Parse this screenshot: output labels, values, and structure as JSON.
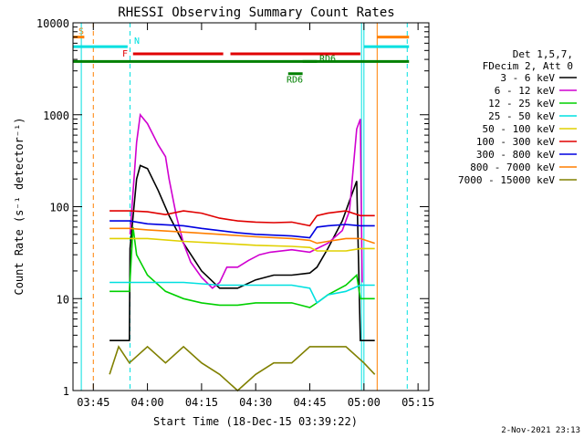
{
  "chart_data": {
    "type": "line",
    "title": "RHESSI Observing Summary Count Rates",
    "xlabel": "Start Time (18-Dec-15 03:39:22)",
    "ylabel": "Count Rate (s⁻¹ detector⁻¹)",
    "xlim": [
      "03:39:22",
      "05:18:00"
    ],
    "ylim": [
      1,
      10000
    ],
    "yscale": "log",
    "x_ticks": [
      "03:45",
      "04:00",
      "04:15",
      "04:30",
      "04:45",
      "05:00",
      "05:15"
    ],
    "y_ticks": [
      "1",
      "10",
      "100",
      "1000",
      "10000"
    ],
    "legend_title": [
      "Det 1,5,7,",
      "FDecim 2, Att 0"
    ],
    "legend_position": "right",
    "series": [
      {
        "name": "3 - 6 keV",
        "color": "#000000",
        "points": [
          [
            "03:49:30",
            3.5
          ],
          [
            "03:55:00",
            3.5
          ],
          [
            "03:55:10",
            35
          ],
          [
            "03:57:00",
            200
          ],
          [
            "03:58:00",
            280
          ],
          [
            "04:00:00",
            260
          ],
          [
            "04:03:00",
            150
          ],
          [
            "04:06:00",
            80
          ],
          [
            "04:10:00",
            40
          ],
          [
            "04:15:00",
            20
          ],
          [
            "04:20:00",
            13
          ],
          [
            "04:25:00",
            13
          ],
          [
            "04:30:00",
            16
          ],
          [
            "04:35:00",
            18
          ],
          [
            "04:40:00",
            18
          ],
          [
            "04:45:00",
            19
          ],
          [
            "04:47:00",
            22
          ],
          [
            "04:50:00",
            35
          ],
          [
            "04:54:00",
            70
          ],
          [
            "04:58:00",
            190
          ],
          [
            "04:59:00",
            3.5
          ],
          [
            "05:03:00",
            3.5
          ]
        ]
      },
      {
        "name": "6 - 12 keV",
        "color": "#d000d0",
        "points": [
          [
            "03:55:10",
            50
          ],
          [
            "03:57:00",
            500
          ],
          [
            "03:58:00",
            1000
          ],
          [
            "04:00:00",
            800
          ],
          [
            "04:03:00",
            470
          ],
          [
            "04:05:00",
            350
          ],
          [
            "04:06:00",
            200
          ],
          [
            "04:08:00",
            80
          ],
          [
            "04:10:00",
            40
          ],
          [
            "04:12:00",
            25
          ],
          [
            "04:15:00",
            17
          ],
          [
            "04:18:00",
            13
          ],
          [
            "04:20:00",
            15
          ],
          [
            "04:22:00",
            22
          ],
          [
            "04:25:00",
            22
          ],
          [
            "04:28:00",
            26
          ],
          [
            "04:31:00",
            30
          ],
          [
            "04:34:00",
            32
          ],
          [
            "04:40:00",
            34
          ],
          [
            "04:45:00",
            32
          ],
          [
            "04:47:00",
            35
          ],
          [
            "04:50:00",
            40
          ],
          [
            "04:54:00",
            55
          ],
          [
            "04:56:00",
            90
          ],
          [
            "04:58:00",
            700
          ],
          [
            "04:59:00",
            900
          ],
          [
            "04:59:30",
            15
          ]
        ]
      },
      {
        "name": "12 - 25 keV",
        "color": "#00d000",
        "points": [
          [
            "03:49:30",
            12
          ],
          [
            "03:55:00",
            12
          ],
          [
            "03:56:00",
            60
          ],
          [
            "03:57:00",
            30
          ],
          [
            "04:00:00",
            18
          ],
          [
            "04:05:00",
            12
          ],
          [
            "04:10:00",
            10
          ],
          [
            "04:15:00",
            9
          ],
          [
            "04:20:00",
            8.5
          ],
          [
            "04:25:00",
            8.5
          ],
          [
            "04:30:00",
            9
          ],
          [
            "04:35:00",
            9
          ],
          [
            "04:40:00",
            9
          ],
          [
            "04:45:00",
            8
          ],
          [
            "04:47:00",
            9
          ],
          [
            "04:50:00",
            11
          ],
          [
            "04:55:00",
            14
          ],
          [
            "04:58:00",
            18
          ],
          [
            "04:59:00",
            10
          ],
          [
            "05:03:00",
            10
          ]
        ]
      },
      {
        "name": "25 - 50 keV",
        "color": "#00e0e0",
        "points": [
          [
            "03:49:30",
            15
          ],
          [
            "03:55:00",
            15
          ],
          [
            "04:00:00",
            15
          ],
          [
            "04:10:00",
            15
          ],
          [
            "04:20:00",
            14
          ],
          [
            "04:30:00",
            14
          ],
          [
            "04:40:00",
            14
          ],
          [
            "04:45:00",
            13
          ],
          [
            "04:47:00",
            9
          ],
          [
            "04:50:00",
            11
          ],
          [
            "04:55:00",
            12
          ],
          [
            "04:59:00",
            14
          ],
          [
            "05:03:00",
            14
          ]
        ]
      },
      {
        "name": "50 - 100 keV",
        "color": "#e0d000",
        "points": [
          [
            "03:49:30",
            45
          ],
          [
            "03:55:00",
            45
          ],
          [
            "04:00:00",
            45
          ],
          [
            "04:10:00",
            42
          ],
          [
            "04:20:00",
            40
          ],
          [
            "04:30:00",
            38
          ],
          [
            "04:40:00",
            37
          ],
          [
            "04:45:00",
            36
          ],
          [
            "04:47:00",
            33
          ],
          [
            "04:55:00",
            33
          ],
          [
            "04:59:00",
            35
          ],
          [
            "05:03:00",
            35
          ]
        ]
      },
      {
        "name": "100 - 300 keV",
        "color": "#e00000",
        "points": [
          [
            "03:49:30",
            90
          ],
          [
            "03:55:00",
            90
          ],
          [
            "04:00:00",
            88
          ],
          [
            "04:05:00",
            82
          ],
          [
            "04:10:00",
            90
          ],
          [
            "04:15:00",
            85
          ],
          [
            "04:20:00",
            75
          ],
          [
            "04:25:00",
            70
          ],
          [
            "04:30:00",
            68
          ],
          [
            "04:35:00",
            67
          ],
          [
            "04:40:00",
            68
          ],
          [
            "04:45:00",
            62
          ],
          [
            "04:47:00",
            80
          ],
          [
            "04:50:00",
            85
          ],
          [
            "04:55:00",
            90
          ],
          [
            "04:59:00",
            80
          ],
          [
            "05:03:00",
            80
          ]
        ]
      },
      {
        "name": "300 - 800 keV",
        "color": "#0000e0",
        "points": [
          [
            "03:49:30",
            70
          ],
          [
            "03:55:00",
            70
          ],
          [
            "04:00:00",
            65
          ],
          [
            "04:10:00",
            62
          ],
          [
            "04:15:00",
            58
          ],
          [
            "04:20:00",
            55
          ],
          [
            "04:25:00",
            52
          ],
          [
            "04:30:00",
            50
          ],
          [
            "04:40:00",
            48
          ],
          [
            "04:45:00",
            46
          ],
          [
            "04:47:00",
            60
          ],
          [
            "04:50:00",
            62
          ],
          [
            "04:55:00",
            64
          ],
          [
            "04:59:00",
            62
          ],
          [
            "05:03:00",
            62
          ]
        ]
      },
      {
        "name": "800 - 7000 keV",
        "color": "#ff7f00",
        "points": [
          [
            "03:49:30",
            58
          ],
          [
            "03:55:00",
            58
          ],
          [
            "04:00:00",
            56
          ],
          [
            "04:10:00",
            53
          ],
          [
            "04:20:00",
            50
          ],
          [
            "04:30:00",
            47
          ],
          [
            "04:40:00",
            45
          ],
          [
            "04:45:00",
            43
          ],
          [
            "04:47:00",
            40
          ],
          [
            "04:50:00",
            42
          ],
          [
            "04:55:00",
            45
          ],
          [
            "04:59:00",
            45
          ],
          [
            "05:03:00",
            40
          ]
        ]
      },
      {
        "name": "7000 - 15000 keV",
        "color": "#808000",
        "points": [
          [
            "03:49:30",
            1.5
          ],
          [
            "03:52:00",
            3
          ],
          [
            "03:55:00",
            2
          ],
          [
            "04:00:00",
            3
          ],
          [
            "04:05:00",
            2
          ],
          [
            "04:10:00",
            3
          ],
          [
            "04:15:00",
            2
          ],
          [
            "04:20:00",
            1.5
          ],
          [
            "04:25:00",
            1
          ],
          [
            "04:30:00",
            1.5
          ],
          [
            "04:35:00",
            2
          ],
          [
            "04:40:00",
            2
          ],
          [
            "04:45:00",
            3
          ],
          [
            "04:50:00",
            3
          ],
          [
            "04:55:00",
            3
          ],
          [
            "05:00:00",
            2
          ],
          [
            "05:03:00",
            1.5
          ]
        ]
      }
    ],
    "annotations": [
      {
        "label": "S",
        "color": "#ff7f00",
        "level": 7000
      },
      {
        "label": "N",
        "color": "#00e0e0",
        "level": 5500
      },
      {
        "label": "F",
        "color": "#e00000",
        "level": 4600
      },
      {
        "label": "",
        "color": "#008000",
        "level": 3800
      },
      {
        "label": "RD6",
        "color": "#008000",
        "level": 3800
      },
      {
        "label": "RD6",
        "color": "#008000",
        "level": 2800
      }
    ]
  },
  "footer_date": "2-Nov-2021 23:13"
}
